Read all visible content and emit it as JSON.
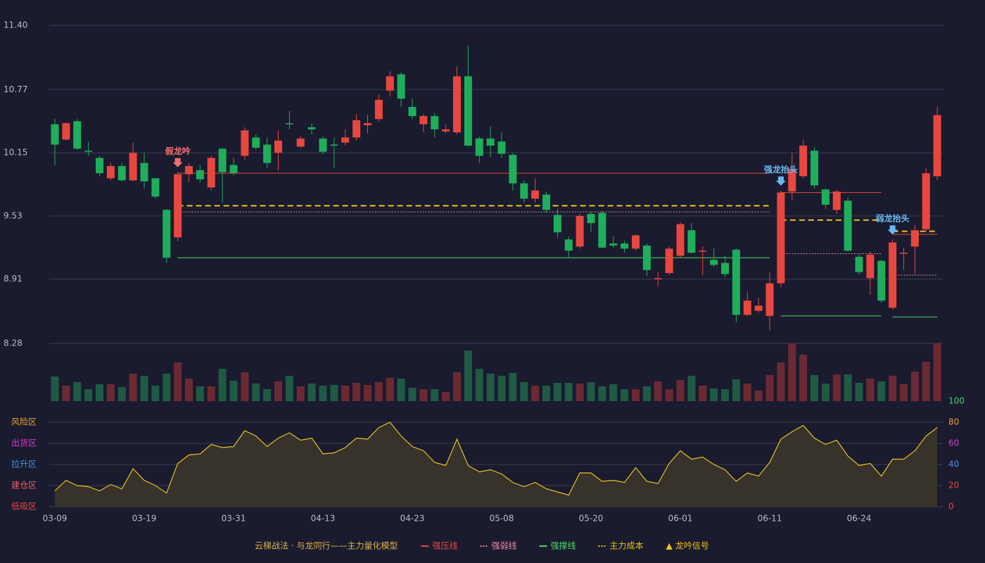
{
  "chart_data": {
    "type": "candlestick",
    "title": "云梯战法 · 与龙同行——主力量化模型",
    "title_color": "#d9b44a",
    "up_color": "#e8473f",
    "down_color": "#1fae5b",
    "volume_up_color": "#6b2a33",
    "volume_down_color": "#1f5a45",
    "categories": [
      "03-09",
      null,
      null,
      null,
      null,
      null,
      null,
      null,
      "03-19",
      null,
      null,
      null,
      null,
      null,
      null,
      null,
      "03-31",
      null,
      null,
      null,
      null,
      null,
      null,
      null,
      "04-13",
      null,
      null,
      null,
      null,
      null,
      null,
      null,
      "04-23",
      null,
      null,
      null,
      null,
      null,
      null,
      null,
      "05-08",
      null,
      null,
      null,
      null,
      null,
      null,
      null,
      "05-20",
      null,
      null,
      null,
      null,
      null,
      null,
      null,
      "06-01",
      null,
      null,
      null,
      null,
      null,
      null,
      null,
      "06-11",
      null,
      null,
      null,
      null,
      null,
      null,
      null,
      "06-24",
      null,
      null,
      null,
      null,
      null,
      null,
      null
    ],
    "open": [
      10.43,
      10.28,
      10.46,
      10.17,
      10.1,
      9.9,
      10.02,
      9.88,
      10.05,
      9.9,
      9.59,
      9.32,
      9.94,
      9.98,
      9.81,
      10.19,
      10.03,
      10.12,
      10.3,
      10.23,
      10.15,
      10.44,
      10.21,
      10.4,
      10.29,
      10.23,
      10.25,
      10.3,
      10.42,
      10.48,
      10.76,
      10.92,
      10.6,
      10.43,
      10.51,
      10.36,
      10.35,
      10.9,
      10.29,
      10.29,
      10.26,
      10.13,
      9.85,
      9.7,
      9.74,
      9.54,
      9.3,
      9.23,
      9.55,
      9.56,
      9.26,
      9.26,
      9.21,
      9.24,
      8.91,
      8.97,
      9.14,
      9.39,
      9.18,
      9.1,
      9.07,
      9.2,
      8.56,
      8.6,
      8.55,
      8.87,
      9.77,
      9.92,
      10.17,
      9.79,
      9.59,
      9.68,
      9.13,
      8.92,
      9.09,
      8.63,
      9.16,
      9.23,
      9.4,
      9.92
    ],
    "high": [
      10.48,
      10.45,
      10.48,
      10.26,
      10.12,
      10.05,
      10.05,
      10.25,
      10.15,
      9.9,
      9.6,
      9.96,
      10.05,
      10.03,
      10.12,
      10.2,
      10.1,
      10.4,
      10.33,
      10.3,
      10.37,
      10.56,
      10.31,
      10.44,
      10.31,
      10.3,
      10.38,
      10.53,
      10.52,
      10.72,
      10.95,
      10.94,
      10.68,
      10.53,
      10.54,
      10.43,
      11.0,
      11.2,
      10.31,
      10.41,
      10.35,
      10.15,
      9.88,
      9.9,
      9.77,
      9.6,
      9.33,
      9.55,
      9.57,
      9.58,
      9.33,
      9.29,
      9.35,
      9.26,
      8.98,
      9.23,
      9.47,
      9.46,
      9.23,
      9.21,
      9.14,
      9.21,
      8.79,
      8.73,
      8.98,
      9.78,
      10.15,
      10.28,
      10.2,
      9.8,
      9.79,
      9.71,
      9.15,
      9.18,
      9.1,
      9.3,
      9.22,
      9.44,
      10.0,
      10.6
    ],
    "low": [
      10.03,
      10.27,
      10.18,
      10.12,
      9.92,
      9.88,
      9.87,
      9.87,
      9.8,
      9.7,
      9.07,
      9.28,
      9.86,
      9.86,
      9.78,
      9.66,
      9.93,
      10.08,
      10.18,
      10.0,
      9.98,
      10.38,
      10.2,
      10.33,
      10.14,
      10.0,
      10.22,
      10.27,
      10.34,
      10.45,
      10.7,
      10.6,
      10.48,
      10.35,
      10.3,
      10.34,
      10.33,
      10.21,
      10.05,
      10.11,
      10.1,
      9.78,
      9.66,
      9.66,
      9.56,
      9.32,
      9.12,
      9.21,
      9.37,
      9.21,
      9.22,
      9.17,
      9.19,
      8.94,
      8.84,
      8.95,
      9.12,
      9.16,
      8.95,
      9.03,
      8.93,
      8.49,
      8.55,
      8.58,
      8.41,
      8.83,
      9.68,
      9.9,
      9.8,
      9.6,
      9.55,
      9.18,
      8.96,
      8.76,
      8.68,
      8.61,
      9.0,
      8.96,
      9.38,
      9.88
    ],
    "close": [
      10.23,
      10.44,
      10.19,
      10.16,
      9.95,
      10.02,
      9.88,
      10.15,
      9.87,
      9.72,
      9.12,
      9.94,
      10.02,
      9.89,
      10.1,
      9.96,
      9.95,
      10.37,
      10.2,
      10.05,
      10.27,
      10.43,
      10.29,
      10.38,
      10.16,
      10.22,
      10.3,
      10.47,
      10.44,
      10.67,
      10.9,
      10.68,
      10.51,
      10.51,
      10.38,
      10.38,
      10.9,
      10.22,
      10.12,
      10.22,
      10.14,
      9.85,
      9.7,
      9.78,
      9.59,
      9.37,
      9.19,
      9.53,
      9.46,
      9.22,
      9.24,
      9.21,
      9.34,
      9.0,
      8.92,
      9.21,
      9.45,
      9.17,
      9.19,
      9.05,
      8.96,
      8.56,
      8.7,
      8.65,
      8.87,
      9.76,
      9.99,
      10.22,
      9.83,
      9.64,
      9.77,
      9.19,
      8.98,
      9.15,
      8.7,
      9.27,
      9.17,
      9.39,
      9.95,
      10.52
    ],
    "ylim": [
      8.28,
      11.4
    ],
    "yticks": [
      {
        "value": 11.4,
        "label": "11.40"
      },
      10.77,
      10.15,
      9.53,
      8.91,
      8.28
    ],
    "grid": true,
    "volume": [
      35,
      22,
      27,
      17,
      24,
      24,
      20,
      39,
      36,
      22,
      39,
      55,
      32,
      21,
      21,
      46,
      29,
      41,
      25,
      17,
      28,
      36,
      21,
      25,
      22,
      23,
      22,
      26,
      23,
      27,
      33,
      32,
      19,
      17,
      17,
      13,
      41,
      72,
      46,
      39,
      36,
      40,
      27,
      22,
      22,
      26,
      26,
      25,
      27,
      21,
      24,
      17,
      17,
      21,
      28,
      17,
      30,
      36,
      22,
      18,
      17,
      31,
      25,
      15,
      37,
      55,
      82,
      66,
      37,
      25,
      38,
      38,
      26,
      32,
      28,
      36,
      24,
      42,
      56,
      82
    ],
    "volume_ylim": [
      0,
      82
    ],
    "indicator": {
      "color": "#e6c229",
      "fill": "#37322a",
      "values": [
        15,
        25,
        20,
        19,
        15,
        21,
        17,
        36,
        25,
        20,
        13,
        41,
        49,
        50,
        59,
        56,
        57,
        72,
        67,
        57,
        65,
        70,
        63,
        65,
        50,
        51,
        56,
        65,
        64,
        75,
        80,
        67,
        57,
        53,
        42,
        39,
        64,
        39,
        33,
        35,
        31,
        23,
        19,
        23,
        17,
        14,
        11,
        32,
        32,
        24,
        25,
        23,
        37,
        24,
        22,
        41,
        53,
        45,
        47,
        40,
        35,
        24,
        32,
        29,
        42,
        64,
        71,
        77,
        65,
        59,
        63,
        48,
        39,
        41,
        29,
        45,
        45,
        53,
        67,
        75
      ],
      "ylim": [
        0,
        100
      ],
      "yticks": [
        0,
        20,
        40,
        60,
        80,
        100
      ],
      "ytick_colors": [
        "#e8473f",
        "#e8473f",
        "#4a90e2",
        "#d63ad6",
        "#e8a23a",
        "#3ad66a"
      ],
      "zones": [
        {
          "label": "风险区",
          "value": 80,
          "color": "#e8a23a"
        },
        {
          "label": "出货区",
          "value": 60,
          "color": "#d63ad6"
        },
        {
          "label": "拉升区",
          "value": 40,
          "color": "#4a90e2"
        },
        {
          "label": "建仓区",
          "value": 20,
          "color": "#e8606a"
        },
        {
          "label": "低吸区",
          "value": 0,
          "color": "#e8473f"
        }
      ]
    },
    "levels": [
      {
        "name": "强压线",
        "color": "#e8473f",
        "dash": "solid",
        "segments": [
          {
            "from": 11,
            "to": 64,
            "value": 9.95
          },
          {
            "from": 65,
            "to": 74,
            "value": 9.76
          },
          {
            "from": 75,
            "to": 79,
            "value": 9.35
          }
        ]
      },
      {
        "name": "强弱线",
        "color": "#f08aa0",
        "dash": "dotted",
        "segments": [
          {
            "from": 11,
            "to": 64,
            "value": 9.57
          },
          {
            "from": 65,
            "to": 74,
            "value": 9.16
          },
          {
            "from": 75,
            "to": 79,
            "value": 8.95
          }
        ]
      },
      {
        "name": "强撑线",
        "color": "#4cd964",
        "dash": "solid",
        "segments": [
          {
            "from": 11,
            "to": 64,
            "value": 9.12
          },
          {
            "from": 65,
            "to": 74,
            "value": 8.55
          },
          {
            "from": 75,
            "to": 79,
            "value": 8.54
          }
        ]
      },
      {
        "name": "主力成本",
        "color": "#f0c419",
        "dash": "dashed",
        "segments": [
          {
            "from": 11,
            "to": 64,
            "value": 9.63
          },
          {
            "from": 65,
            "to": 74,
            "value": 9.49
          },
          {
            "from": 75,
            "to": 79,
            "value": 9.38
          }
        ]
      }
    ],
    "signal_legend": {
      "marker": "▲",
      "name": "龙吟信号",
      "color": "#f0c419"
    },
    "signals": [
      {
        "index": 11,
        "label": "假龙吟",
        "color": "#f07070"
      },
      {
        "index": 65,
        "label": "强龙抬头",
        "color": "#6ab8f0"
      },
      {
        "index": 75,
        "label": "弱龙抬头",
        "color": "#6ab8f0"
      }
    ]
  }
}
